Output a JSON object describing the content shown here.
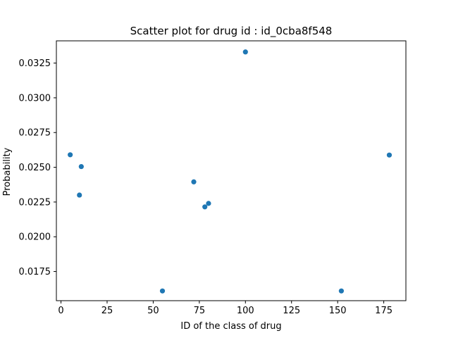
{
  "chart_data": {
    "type": "scatter",
    "title": "Scatter plot for drug id : id_0cba8f548",
    "xlabel": "ID of the class of drug",
    "ylabel": "Probability",
    "xlim": [
      -2.5,
      187
    ],
    "ylim": [
      0.0154,
      0.0341
    ],
    "xticks": [
      0,
      25,
      50,
      75,
      100,
      125,
      150,
      175
    ],
    "yticks": [
      0.0175,
      0.02,
      0.0225,
      0.025,
      0.0275,
      0.03,
      0.0325
    ],
    "ytick_labels": [
      "0.0175",
      "0.0200",
      "0.0225",
      "0.0250",
      "0.0275",
      "0.0300",
      "0.0325"
    ],
    "grid": false,
    "color": "#1f77b4",
    "points": [
      {
        "x": 5,
        "y": 0.0259
      },
      {
        "x": 10,
        "y": 0.023
      },
      {
        "x": 11,
        "y": 0.02505
      },
      {
        "x": 55,
        "y": 0.0161
      },
      {
        "x": 72,
        "y": 0.02395
      },
      {
        "x": 78,
        "y": 0.02215
      },
      {
        "x": 80,
        "y": 0.0224
      },
      {
        "x": 100,
        "y": 0.0333
      },
      {
        "x": 152,
        "y": 0.0161
      },
      {
        "x": 178,
        "y": 0.02588
      }
    ]
  }
}
